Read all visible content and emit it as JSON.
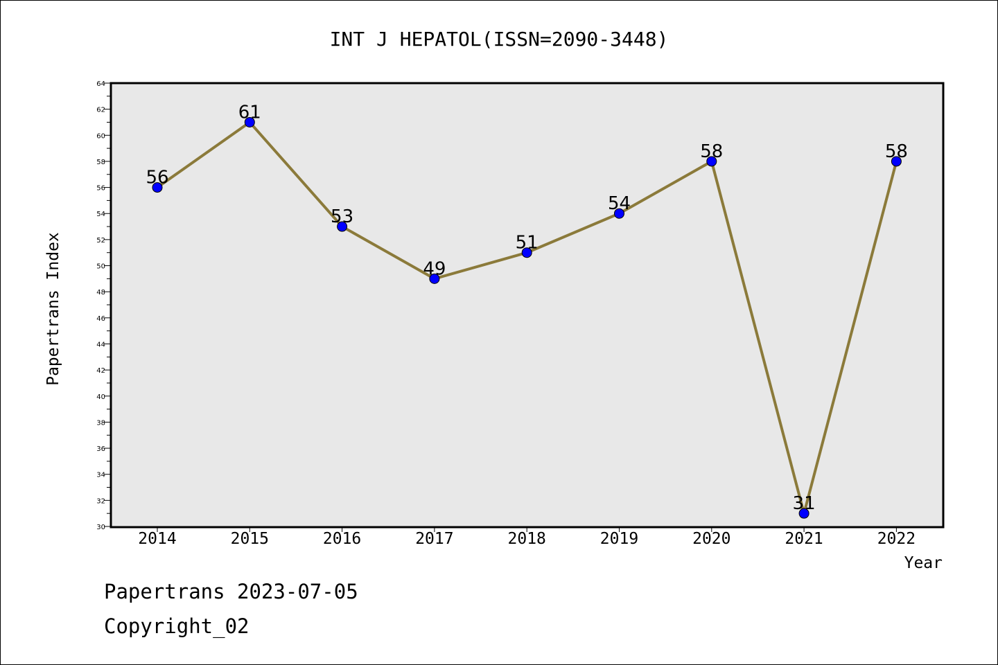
{
  "chart_data": {
    "type": "line",
    "title": "INT J HEPATOL(ISSN=2090-3448)",
    "xlabel": "Year",
    "ylabel": "Papertrans Index",
    "categories": [
      "2014",
      "2015",
      "2016",
      "2017",
      "2018",
      "2019",
      "2020",
      "2021",
      "2022"
    ],
    "series": [
      {
        "values": [
          56,
          61,
          53,
          49,
          51,
          54,
          58,
          31,
          58
        ]
      }
    ],
    "data_labels": [
      "56",
      "61",
      "53",
      "49",
      "51",
      "54",
      "58",
      "31",
      "58"
    ],
    "ylim": [
      30,
      64
    ],
    "yticks": [
      "30",
      "32",
      "34",
      "36",
      "38",
      "40",
      "42",
      "44",
      "46",
      "48",
      "50",
      "52",
      "54",
      "56",
      "58",
      "60",
      "62",
      "64"
    ],
    "grid": false,
    "legend": "none",
    "colors": {
      "line": "#8b7a3a",
      "marker": "#0000ff",
      "plot_background": "#e8e8e8"
    }
  },
  "footer": {
    "line1": "Papertrans 2023-07-05",
    "line2": "Copyright_02"
  }
}
